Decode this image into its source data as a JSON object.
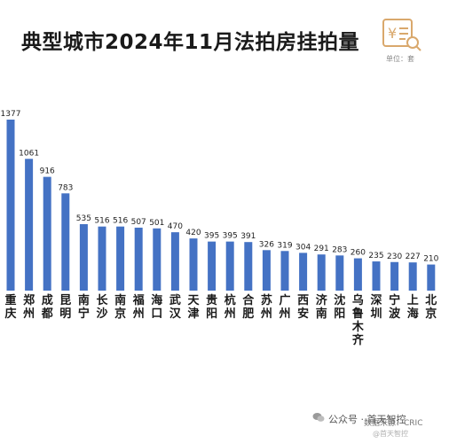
{
  "header": {
    "title": "典型城市2024年11月法拍房挂拍量",
    "unit": "单位：套"
  },
  "footer": {
    "account": "公众号 · 首天智控",
    "source": "数据来源：CRIC",
    "watermark": "@首天智控"
  },
  "colors": {
    "bar": "#4472c4",
    "title": "#1a1a1a",
    "logo": "#d9a86c"
  },
  "icons": {
    "logo": "price-document-icon",
    "footer": "wechat-icon"
  },
  "chart_data": {
    "type": "bar",
    "title": "典型城市2024年11月法拍房挂拍量",
    "unit": "单位：套",
    "categories": [
      "重庆",
      "郑州",
      "成都",
      "昆明",
      "南宁",
      "长沙",
      "南京",
      "福州",
      "海口",
      "武汉",
      "天津",
      "贵阳",
      "杭州",
      "合肥",
      "苏州",
      "广州",
      "西安",
      "济南",
      "沈阳",
      "乌鲁木齐",
      "深圳",
      "宁波",
      "上海",
      "北京"
    ],
    "values": [
      1377,
      1061,
      916,
      783,
      535,
      516,
      516,
      507,
      501,
      470,
      420,
      395,
      395,
      391,
      326,
      319,
      304,
      291,
      283,
      260,
      235,
      230,
      227,
      210
    ],
    "ylim": [
      0,
      1400
    ],
    "grid": false,
    "legend": "none"
  }
}
